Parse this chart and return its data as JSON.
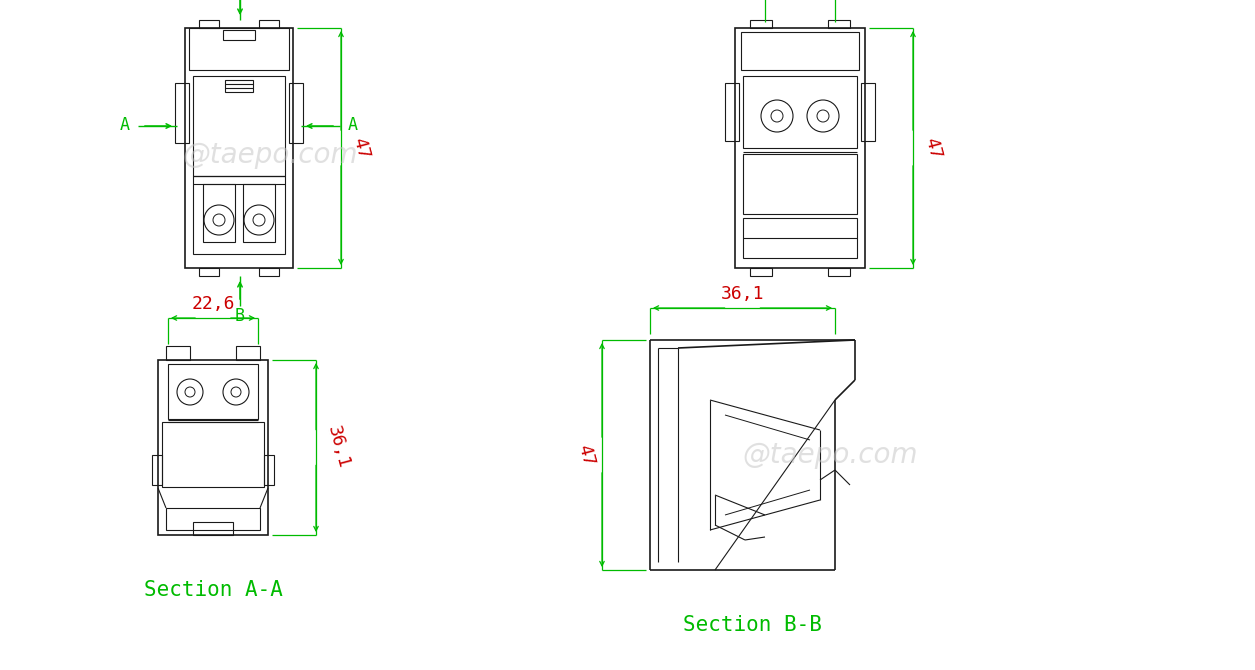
{
  "bg_color": "#ffffff",
  "line_color": "#1a1a1a",
  "dim_color_red": "#cc0000",
  "dim_color_green": "#00bb00",
  "watermark_color": "#c8c8c8",
  "watermark_text": "@taepo.com",
  "section_aa_label": "Section A-A",
  "section_bb_label": "Section B-B",
  "dim_22_6": "22,6",
  "dim_47_tl": "47",
  "dim_47_tr": "47",
  "dim_36_1_bl": "36,1",
  "dim_36_1_br": "36,1",
  "dim_47_br": "47",
  "label_A": "A",
  "label_B": "B"
}
